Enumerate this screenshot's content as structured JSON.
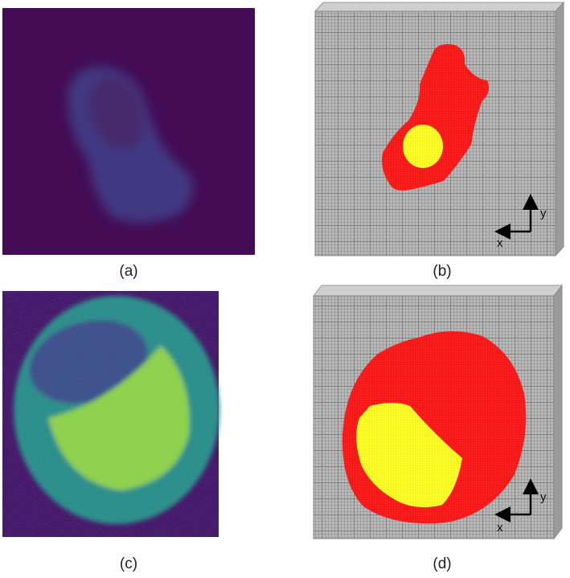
{
  "panels": [
    {
      "label": "(a)"
    },
    {
      "label": "(b)",
      "axes": {
        "x": "x",
        "y": "y"
      }
    },
    {
      "label": "(c)"
    },
    {
      "label": "(d)",
      "axes": {
        "x": "x",
        "y": "y"
      }
    }
  ]
}
